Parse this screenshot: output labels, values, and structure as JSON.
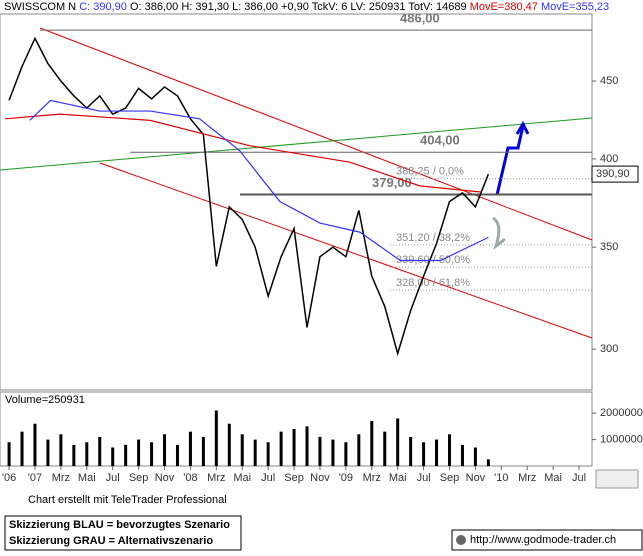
{
  "chart_data": [
    {
      "type": "line",
      "title": "SWISSCOM N",
      "close_label": "C: 390,90",
      "subtitle": "O: 386,00 H: 391,30 L: 386,00 +0,90 TckV: 6 LV: 250931 TotV: 14689",
      "last_price": {
        "value": 390.9,
        "label": "390,90"
      },
      "log_y": true,
      "xlim": [
        -2.7,
        43
      ],
      "ylim": [
        282,
        498
      ],
      "yticks": [
        300,
        350,
        400,
        450
      ],
      "x": [
        -2,
        -1,
        0,
        1,
        2,
        3,
        4,
        5,
        6,
        7,
        8,
        9,
        10,
        11,
        12,
        13,
        14,
        15,
        16,
        17,
        18,
        19,
        20,
        21,
        22,
        23,
        24,
        25,
        26,
        27,
        28,
        29,
        30,
        31,
        32,
        33,
        34,
        35
      ],
      "series": [
        {
          "color": "#000000",
          "values": [
            437,
            460,
            480,
            462,
            450,
            440,
            432,
            440,
            428,
            432,
            445,
            438,
            446,
            440,
            425,
            415,
            340,
            372,
            365,
            350,
            325,
            345,
            360,
            310,
            345,
            350,
            345,
            370,
            335,
            320,
            298,
            318,
            335,
            352,
            375,
            380,
            372,
            390.9
          ]
        },
        {
          "name": "MovE=380,47",
          "color": "#e00000",
          "x": [
            -2.3,
            1.9,
            8.9,
            16.6,
            24.3,
            29.7,
            34.4
          ],
          "values": [
            425,
            428,
            424,
            408,
            398,
            384,
            380.47
          ]
        },
        {
          "name": "MovE=355,23",
          "color": "#3333ff",
          "x": [
            -0.4,
            1.2,
            5,
            8.9,
            12.7,
            15.8,
            18.9,
            22,
            25.1,
            28.2,
            31.3,
            35
          ],
          "values": [
            424,
            437,
            430,
            430,
            425,
            405,
            375,
            363,
            358,
            343,
            343,
            355.23
          ]
        }
      ],
      "levels": [
        {
          "value": 486,
          "label": "486,00",
          "color": "#666666"
        },
        {
          "value": 404,
          "label": "404,00",
          "color": "#666666"
        },
        {
          "value": 379,
          "label": "379,00",
          "color": "#555555"
        }
      ],
      "fib_levels": [
        {
          "value": 388.25,
          "label": "388,25 / 0,0%"
        },
        {
          "value": 351.2,
          "label": "351,20 / 38,2%"
        },
        {
          "value": 339.6,
          "label": "339,60 / 50,0%"
        },
        {
          "value": 328,
          "label": "328,00 / 61,8%"
        }
      ]
    },
    {
      "type": "bar",
      "title": "Volume=250931",
      "color": "#000000",
      "x": [
        -2,
        -1,
        0,
        1,
        2,
        3,
        4,
        5,
        6,
        7,
        8,
        9,
        10,
        11,
        12,
        13,
        14,
        15,
        16,
        17,
        18,
        19,
        20,
        21,
        22,
        23,
        24,
        25,
        26,
        27,
        28,
        29,
        30,
        31,
        32,
        33,
        34,
        35
      ],
      "values": [
        900000,
        1300000,
        1600000,
        1000000,
        1200000,
        800000,
        900000,
        1100000,
        700000,
        800000,
        1000000,
        900000,
        1200000,
        800000,
        1300000,
        1100000,
        2100000,
        1600000,
        1200000,
        1000000,
        900000,
        1300000,
        1400000,
        1500000,
        1100000,
        1000000,
        900000,
        1200000,
        1700000,
        1300000,
        1800000,
        1100000,
        900000,
        1000000,
        1200000,
        800000,
        700000,
        250931
      ],
      "xlim": [
        -2.7,
        43
      ],
      "ylim": [
        0,
        2800000
      ],
      "yticks": [
        1000000,
        2000000
      ],
      "xticks": [
        {
          "value": -2,
          "label": "'06"
        },
        {
          "value": 0,
          "label": "'07"
        },
        {
          "value": 2,
          "label": "Mrz"
        },
        {
          "value": 4,
          "label": "Mai"
        },
        {
          "value": 6,
          "label": "Jul"
        },
        {
          "value": 8,
          "label": "Sep"
        },
        {
          "value": 10,
          "label": "Nov"
        },
        {
          "value": 12,
          "label": "'08"
        },
        {
          "value": 14,
          "label": "Mrz"
        },
        {
          "value": 16,
          "label": "Mai"
        },
        {
          "value": 18,
          "label": "Jul"
        },
        {
          "value": 20,
          "label": "Sep"
        },
        {
          "value": 22,
          "label": "Nov"
        },
        {
          "value": 24,
          "label": "'09"
        },
        {
          "value": 26,
          "label": "Mrz"
        },
        {
          "value": 28,
          "label": "Mai"
        },
        {
          "value": 30,
          "label": "Jul"
        },
        {
          "value": 32,
          "label": "Sep"
        },
        {
          "value": 34,
          "label": "Nov"
        },
        {
          "value": 36,
          "label": "'10"
        },
        {
          "value": 38,
          "label": "Mrz"
        },
        {
          "value": 40,
          "label": "Mai"
        },
        {
          "value": 42,
          "label": "Jul"
        }
      ]
    }
  ],
  "footer": {
    "credit": "Chart erstellt mit TeleTrader Professional",
    "legend_blue": "Skizzierung BLAU = bevorzugtes Szenario",
    "legend_gray": "Skizzierung GRAU = Alternativszenario",
    "url": "http://www.godmode-trader.ch"
  }
}
